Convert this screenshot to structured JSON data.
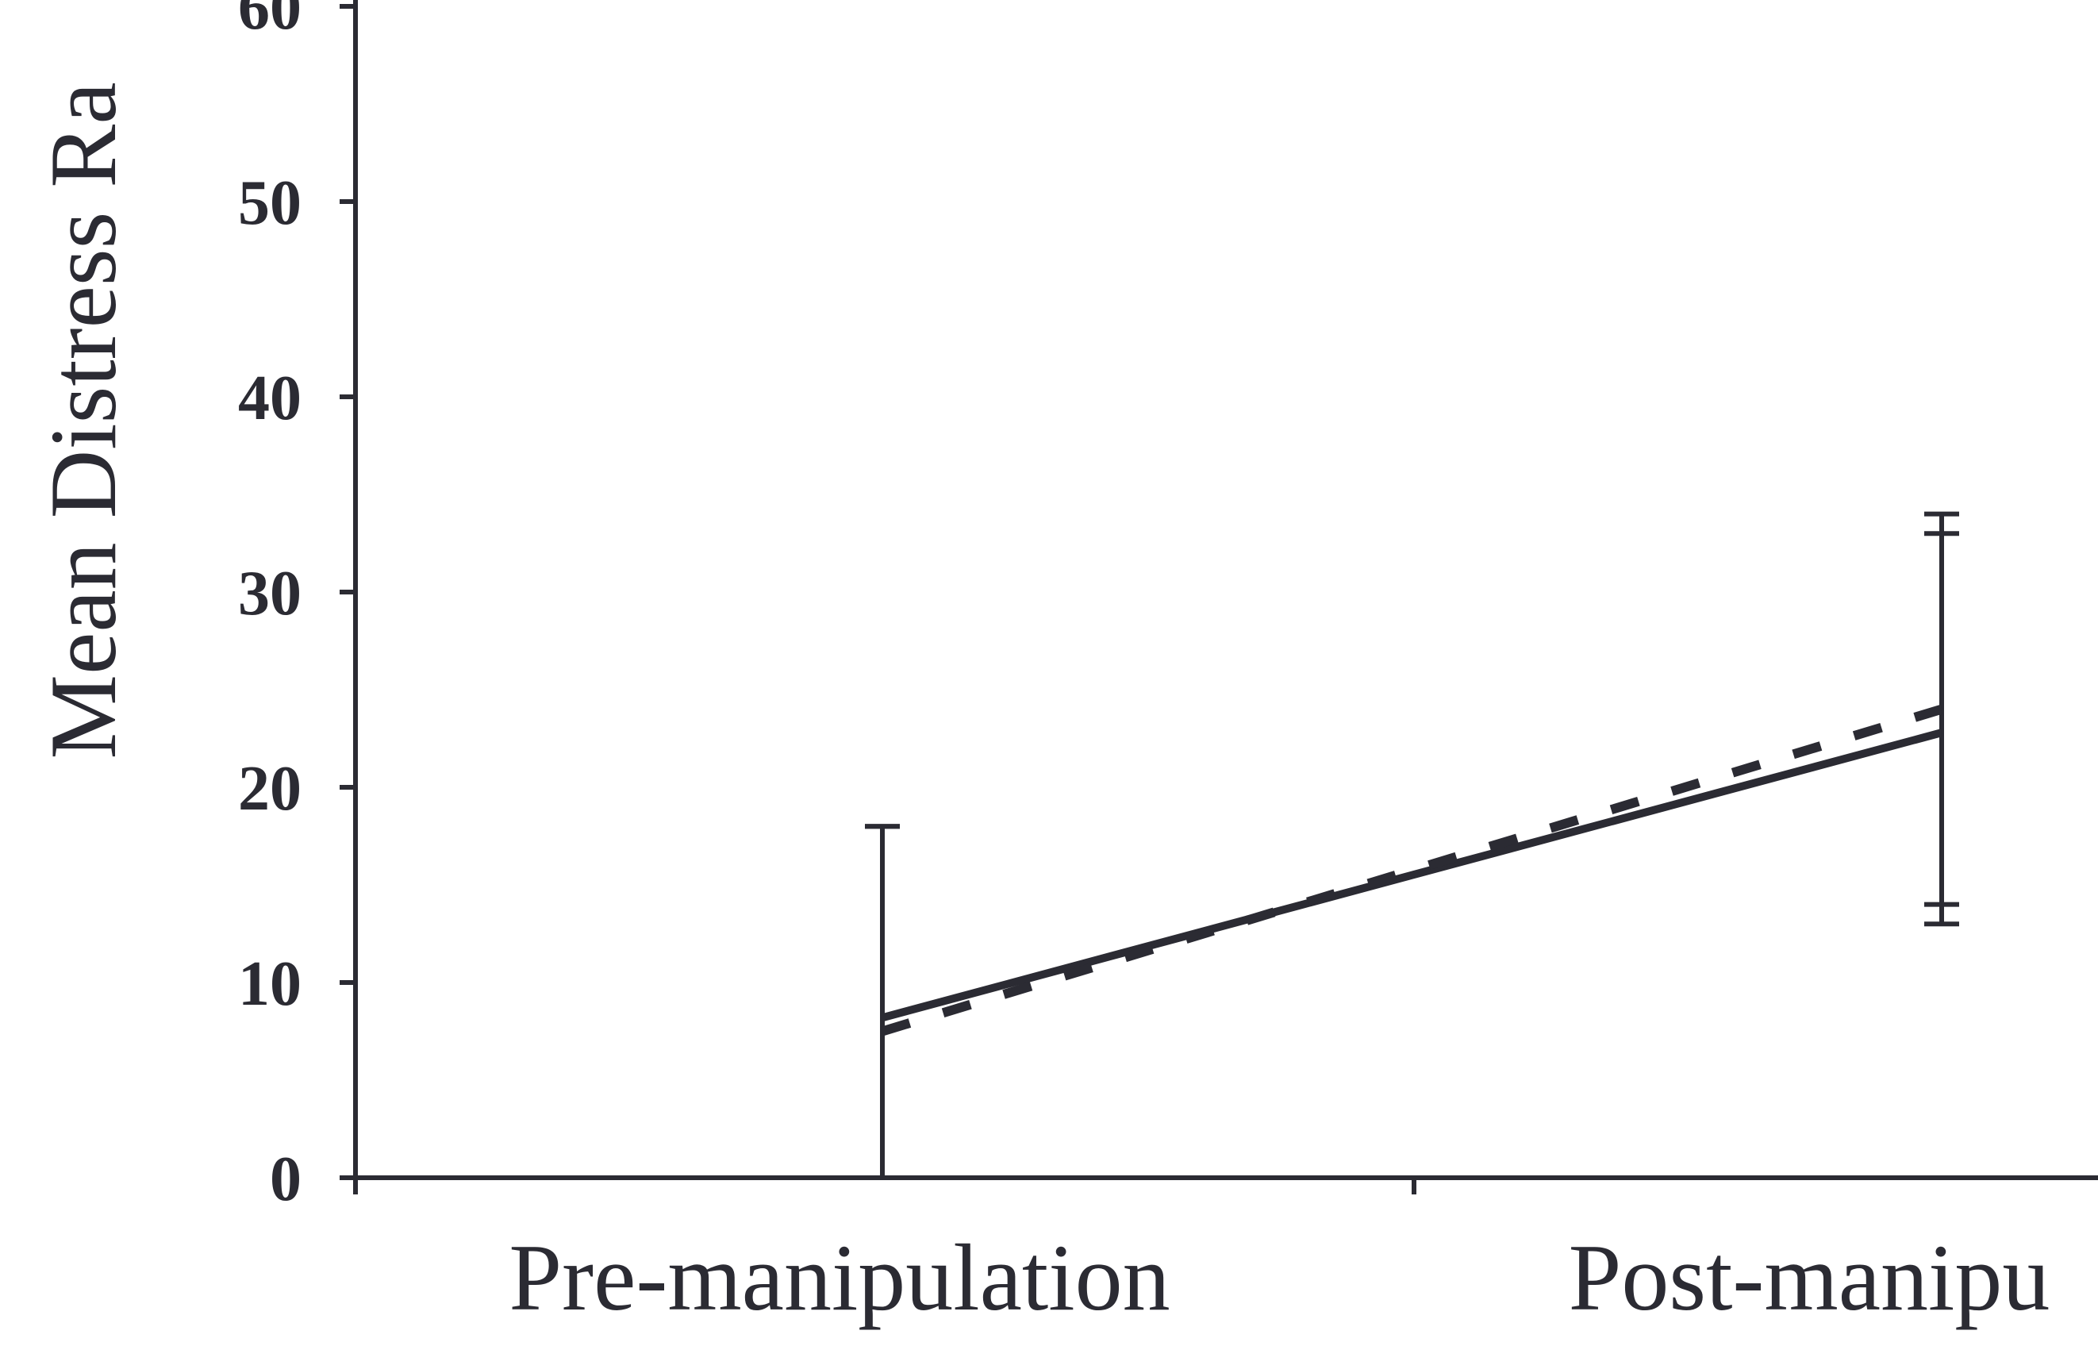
{
  "chart_data": {
    "type": "line",
    "ylabel": "Mean Distress Ra",
    "xlabel": "",
    "ylim": [
      0,
      60
    ],
    "yticks": [
      0,
      10,
      20,
      30,
      40,
      50,
      60
    ],
    "categories": [
      "Pre-manipulation",
      "Post-manipu"
    ],
    "grid": false,
    "series": [
      {
        "style": "solid",
        "values": [
          8.2,
          22.8
        ],
        "error_low": [
          null,
          13
        ],
        "error_high": [
          18,
          34
        ]
      },
      {
        "style": "dashed",
        "values": [
          7.5,
          24.0
        ],
        "error_low": [
          null,
          14
        ],
        "error_high": [
          18,
          33
        ]
      }
    ]
  }
}
